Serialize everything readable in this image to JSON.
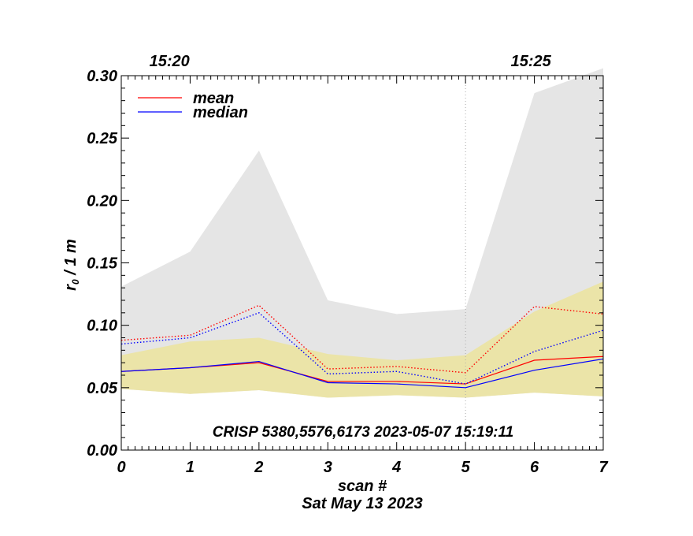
{
  "chart_data": {
    "type": "line",
    "title": "",
    "xlabel": "scan #",
    "ylabel": "r₀ / 1 m",
    "ylabel_main": "r",
    "ylabel_sub": "0",
    "ylabel_rest": " / 1 m",
    "xlim": [
      0,
      7
    ],
    "ylim": [
      0,
      0.3
    ],
    "x_ticks": [
      "0",
      "1",
      "2",
      "3",
      "4",
      "5",
      "6",
      "7"
    ],
    "y_ticks": [
      "0.00",
      "0.05",
      "0.10",
      "0.15",
      "0.20",
      "0.25",
      "0.30"
    ],
    "top_time_labels": [
      {
        "x": 0.7,
        "label": "15:20"
      },
      {
        "x": 5.95,
        "label": "15:25"
      }
    ],
    "vertical_marker_x": 5,
    "annotation": "CRISP 5380,5576,6173 2023-05-07 15:19:11",
    "date_label": "Sat May 13 2023",
    "legend_position": "top-left",
    "x": [
      0,
      1,
      2,
      3,
      4,
      5,
      6,
      7
    ],
    "bands": [
      {
        "name": "max-envelope",
        "color": "#e5e5e5",
        "upper": [
          0.131,
          0.159,
          0.24,
          0.12,
          0.109,
          0.113,
          0.286,
          0.306
        ],
        "lower": [
          0.049,
          0.045,
          0.048,
          0.042,
          0.044,
          0.042,
          0.046,
          0.043
        ]
      },
      {
        "name": "spread",
        "color": "#ebe4a8",
        "upper": [
          0.076,
          0.087,
          0.09,
          0.077,
          0.072,
          0.076,
          0.111,
          0.135
        ],
        "lower": [
          0.049,
          0.045,
          0.048,
          0.042,
          0.044,
          0.042,
          0.046,
          0.043
        ]
      }
    ],
    "series": [
      {
        "name": "mean",
        "color": "#ff0000",
        "style": "solid",
        "values": [
          0.063,
          0.066,
          0.07,
          0.055,
          0.055,
          0.053,
          0.072,
          0.075
        ]
      },
      {
        "name": "median",
        "color": "#0000ff",
        "style": "solid",
        "values": [
          0.063,
          0.066,
          0.071,
          0.054,
          0.053,
          0.05,
          0.064,
          0.073
        ]
      },
      {
        "name": "",
        "color": "#ff0000",
        "style": "dotted",
        "values": [
          0.088,
          0.092,
          0.116,
          0.065,
          0.067,
          0.062,
          0.115,
          0.109
        ]
      },
      {
        "name": "",
        "color": "#0000ff",
        "style": "dotted",
        "values": [
          0.085,
          0.09,
          0.11,
          0.061,
          0.063,
          0.053,
          0.079,
          0.096
        ]
      }
    ],
    "legend": [
      {
        "label": "mean",
        "color": "#ff0000"
      },
      {
        "label": "median",
        "color": "#0000ff"
      }
    ]
  }
}
